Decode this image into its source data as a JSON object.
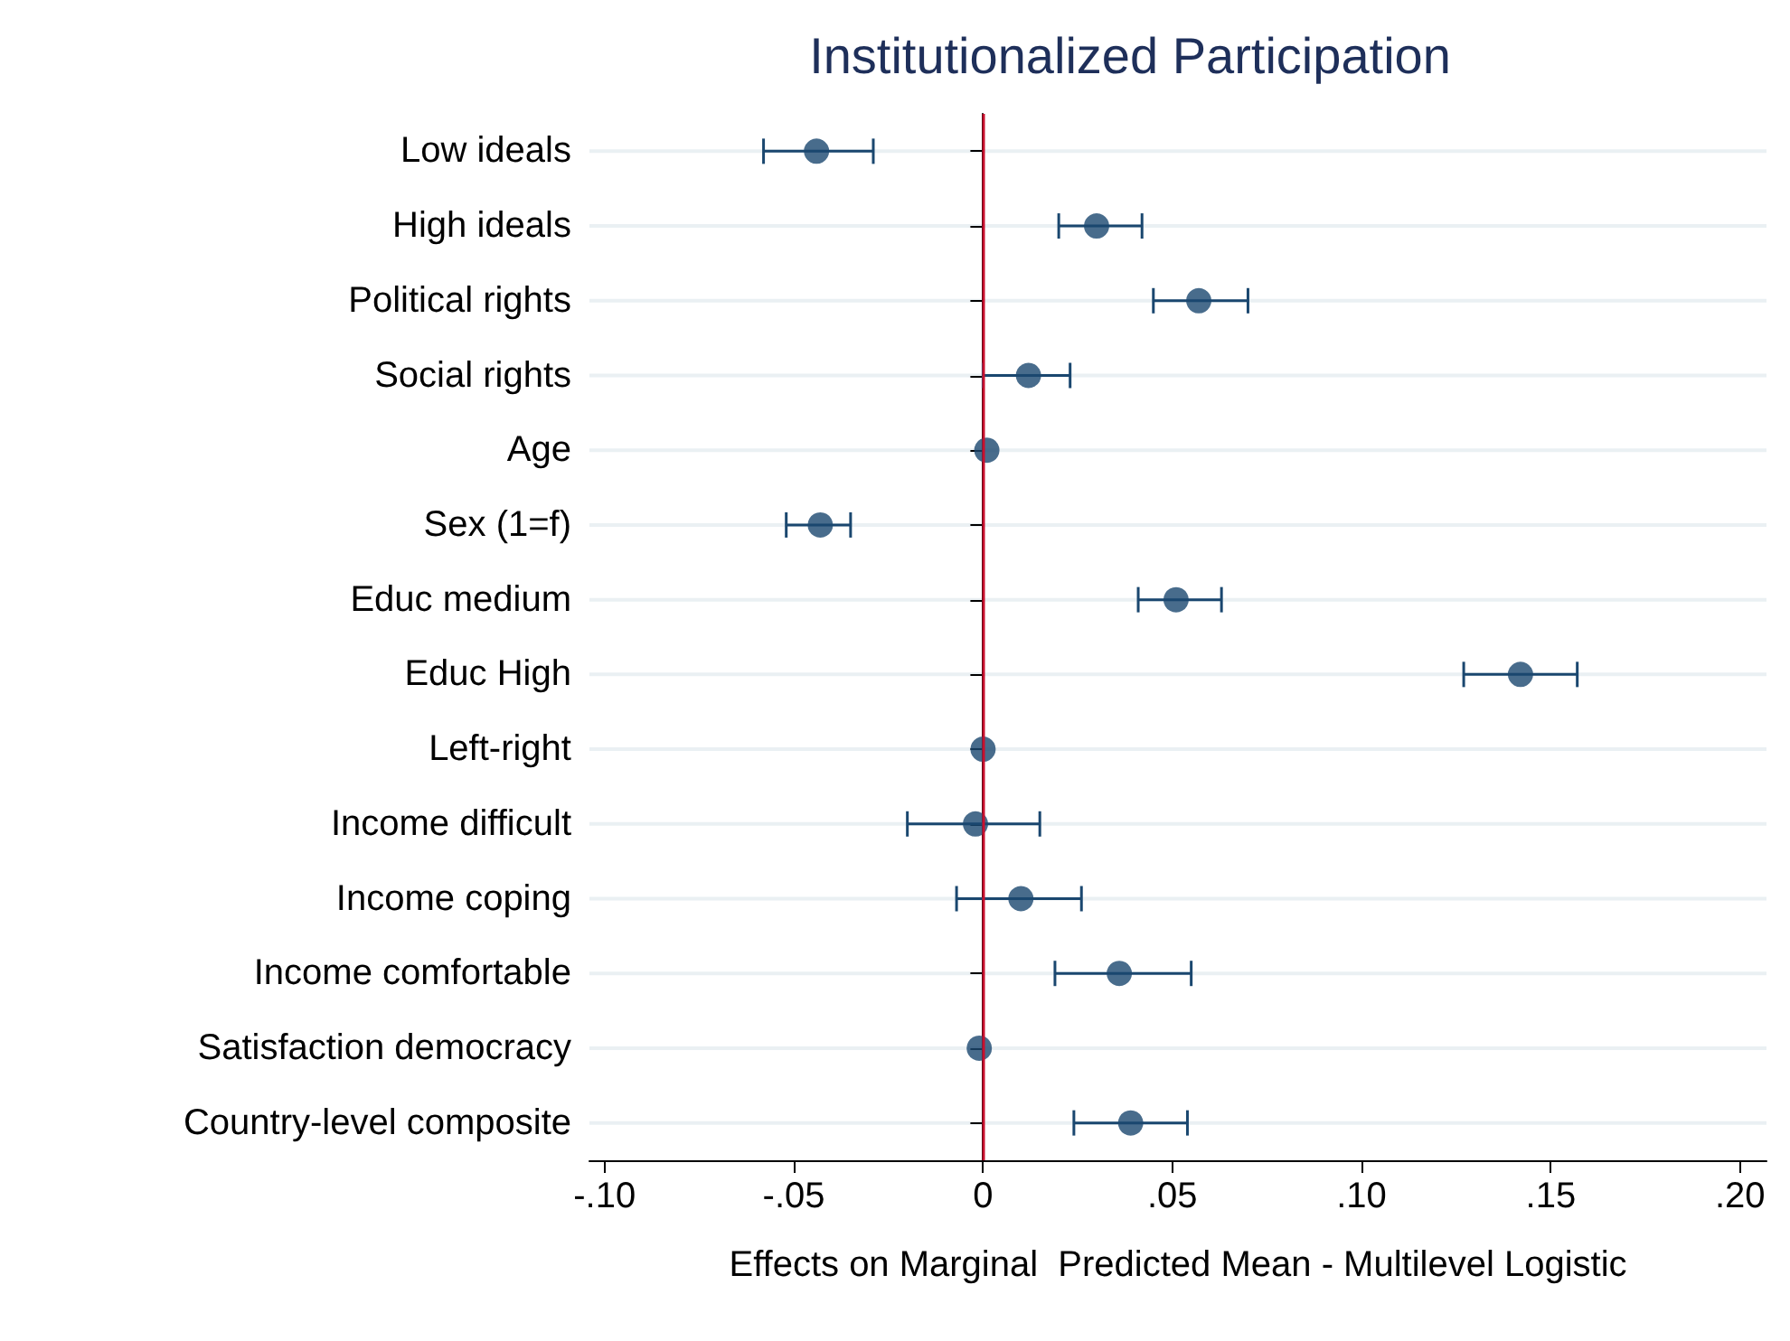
{
  "chart_data": {
    "type": "scatter",
    "orientation": "horizontal",
    "title": "Institutionalized Participation",
    "xlabel": "Effects on Marginal  Predicted Mean - Multilevel Logistic",
    "categories": [
      "Low ideals",
      "High ideals",
      "Political rights",
      "Social rights",
      "Age",
      "Sex (1=f)",
      "Educ medium",
      "Educ High",
      "Left-right",
      "Income difficult",
      "Income coping",
      "Income comfortable",
      "Satisfaction democracy",
      "Country-level composite"
    ],
    "values": [
      -0.044,
      0.03,
      0.057,
      0.012,
      0.001,
      -0.043,
      0.051,
      0.142,
      0.0,
      -0.002,
      0.01,
      0.036,
      -0.001,
      0.039
    ],
    "errors": [
      [
        -0.058,
        -0.029
      ],
      [
        0.02,
        0.042
      ],
      [
        0.045,
        0.07
      ],
      [
        0.0,
        0.023
      ],
      null,
      [
        -0.052,
        -0.035
      ],
      [
        0.041,
        0.063
      ],
      [
        0.127,
        0.157
      ],
      null,
      [
        -0.02,
        0.015
      ],
      [
        -0.007,
        0.026
      ],
      [
        0.019,
        0.055
      ],
      null,
      [
        0.024,
        0.054
      ]
    ],
    "color": "#1a476f",
    "marker": "circle",
    "grid": "y",
    "xlim": [
      -0.104,
      0.207
    ],
    "xticks": [
      {
        "value": -0.1,
        "label": "-.10"
      },
      {
        "value": -0.05,
        "label": "-.05"
      },
      0,
      {
        "value": 0.05,
        "label": ".05"
      },
      {
        "value": 0.1,
        "label": ".10"
      },
      {
        "value": 0.15,
        "label": ".15"
      },
      {
        "value": 0.2,
        "label": ".20"
      }
    ],
    "ref_lines": [
      {
        "axis": "x",
        "value": 0,
        "color": "#c8102e"
      }
    ]
  }
}
